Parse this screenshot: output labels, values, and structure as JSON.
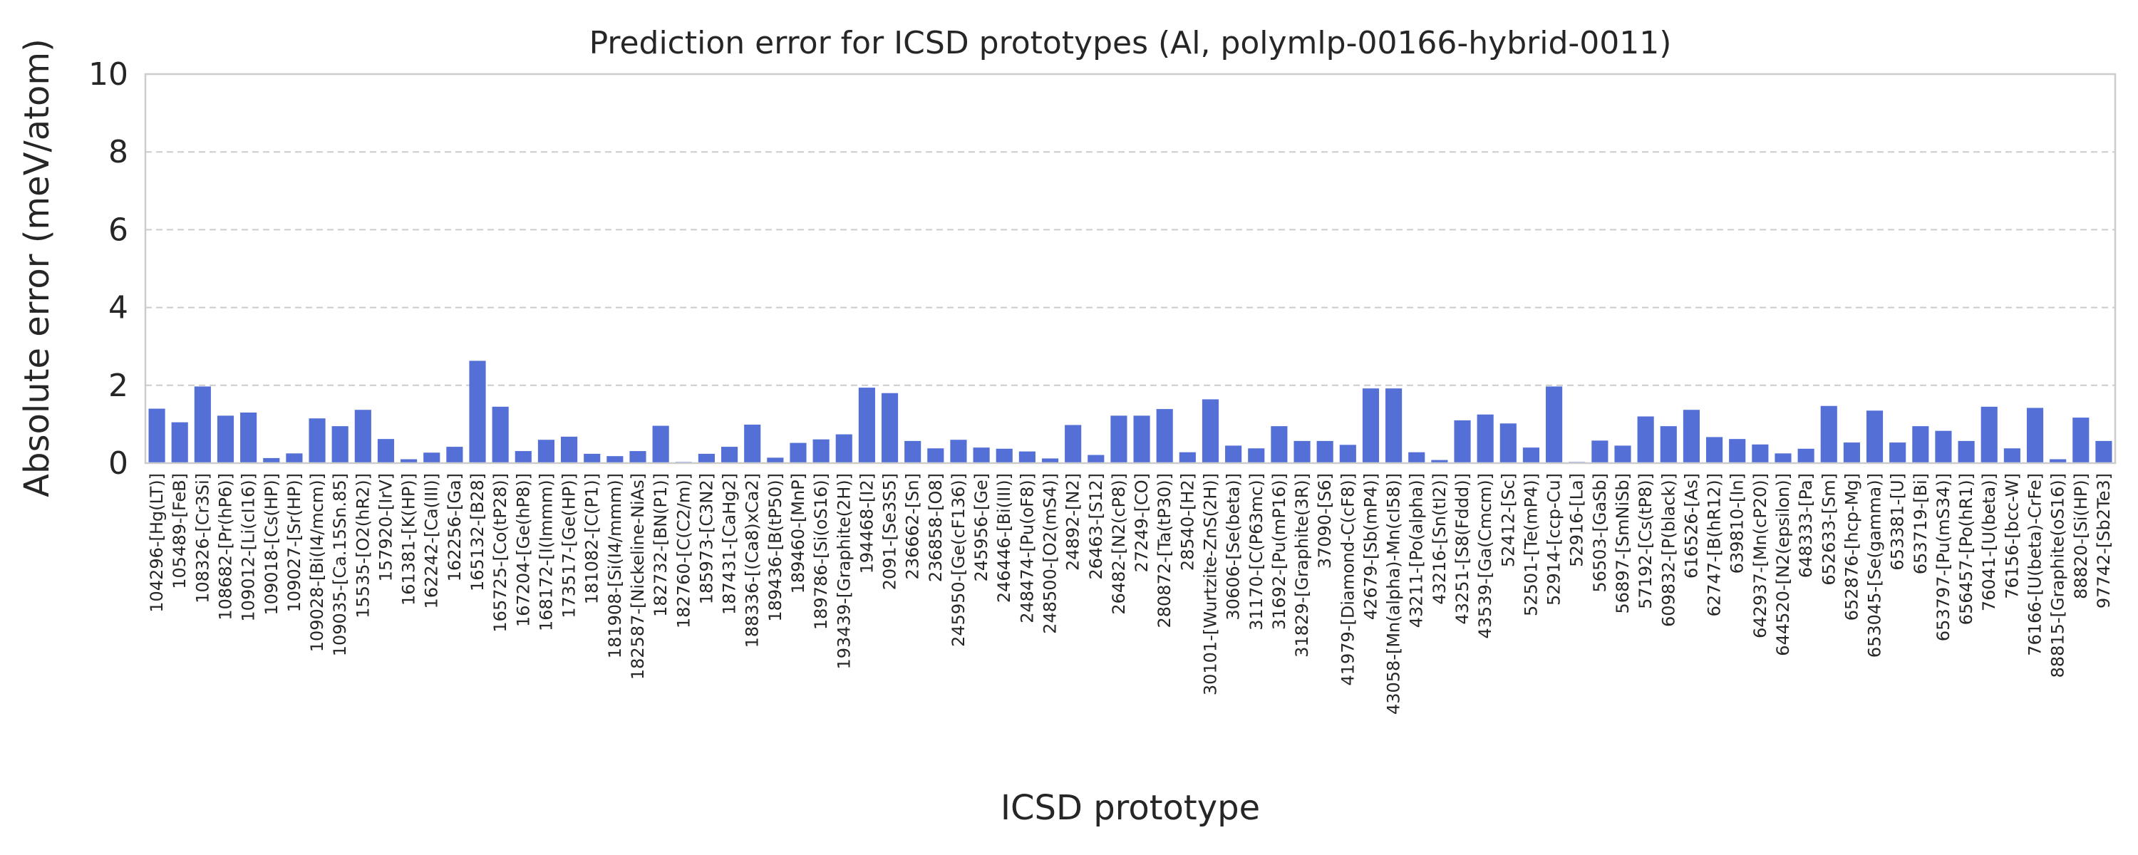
{
  "chart_data": {
    "type": "bar",
    "title": "Prediction error for ICSD prototypes (Al, polymlp-00166-hybrid-0011)",
    "xlabel": "ICSD prototype",
    "ylabel": "Absolute error (meV/atom)",
    "ylim": [
      0,
      10
    ],
    "yticks": [
      0,
      2,
      4,
      6,
      8,
      10
    ],
    "grid": true,
    "bar_color": "#5470d6",
    "categories": [
      "104296-[Hg(LT)]",
      "105489-[FeB]",
      "108326-[Cr3Si]",
      "108682-[Pr(hP6)]",
      "109012-[Li(cI16)]",
      "109018-[Cs(HP)]",
      "109027-[Sr(HP)]",
      "109028-[Bi(I4/mcm)]",
      "109035-[Ca.15Sn.85]",
      "15535-[O2(hR2)]",
      "157920-[IrV]",
      "161381-[K(HP)]",
      "162242-[Ca(III)]",
      "162256-[Ga]",
      "165132-[B28]",
      "165725-[Co(tP28)]",
      "167204-[Ge(hP8)]",
      "168172-[I(Immm)]",
      "173517-[Ge(HP)]",
      "181082-[C(P1)]",
      "181908-[Si(I4/mmm)]",
      "182587-[Nickeline-NiAs]",
      "182732-[BN(P1)]",
      "182760-[C(C2/m)]",
      "185973-[C3N2]",
      "187431-[CaHg2]",
      "188336-[(Ca8)xCa2]",
      "189436-[B(tP50)]",
      "189460-[MnP]",
      "189786-[Si(oS16)]",
      "193439-[Graphite(2H)]",
      "194468-[I2]",
      "2091-[Se3S5]",
      "236662-[Sn]",
      "236858-[O8]",
      "245950-[Ge(cF136)]",
      "245956-[Ge]",
      "246446-[Bi(III)]",
      "248474-[Pu(oF8)]",
      "248500-[O2(mS4)]",
      "24892-[N2]",
      "26463-[S12]",
      "26482-[N2(cP8)]",
      "27249-[CO]",
      "280872-[Ta(tP30)]",
      "28540-[H2]",
      "30101-[Wurtzite-ZnS(2H)]",
      "30606-[Se(beta)]",
      "31170-[C(P63mc)]",
      "31692-[Pu(mP16)]",
      "31829-[Graphite(3R)]",
      "37090-[S6]",
      "41979-[Diamond-C(cF8)]",
      "42679-[Sb(mP4)]",
      "43058-[Mn(alpha)-Mn(cI58)]",
      "43211-[Po(alpha)]",
      "43216-[Sn(tI2)]",
      "43251-[S8(Fddd)]",
      "43539-[Ga(Cmcm)]",
      "52412-[Sc]",
      "52501-[Te(mP4)]",
      "52914-[ccp-Cu]",
      "52916-[La]",
      "56503-[GaSb]",
      "56897-[SmNiSb]",
      "57192-[Cs(tP8)]",
      "609832-[P(black)]",
      "616526-[As]",
      "62747-[B(hR12)]",
      "639810-[In]",
      "642937-[Mn(cP20)]",
      "644520-[N2(epsilon)]",
      "648333-[Pa]",
      "652633-[Sm]",
      "652876-[hcp-Mg]",
      "653045-[Se(gamma)]",
      "653381-[U]",
      "653719-[Bi]",
      "653797-[Pu(mS34)]",
      "656457-[Po(hR1)]",
      "76041-[U(beta)]",
      "76156-[bcc-W]",
      "76166-[U(beta)-CrFe]",
      "88815-[Graphite(oS16)]",
      "88820-[Si(HP)]",
      "97742-[Sb2Te3]"
    ],
    "values": [
      1.4,
      1.05,
      1.97,
      1.22,
      1.3,
      0.13,
      0.25,
      1.15,
      0.95,
      1.37,
      0.62,
      0.1,
      0.27,
      0.42,
      2.63,
      1.45,
      0.31,
      0.6,
      0.68,
      0.24,
      0.18,
      0.31,
      0.96,
      0.03,
      0.24,
      0.42,
      0.99,
      0.14,
      0.52,
      0.61,
      0.74,
      1.94,
      1.8,
      0.57,
      0.38,
      0.6,
      0.4,
      0.37,
      0.3,
      0.12,
      0.98,
      0.21,
      1.22,
      1.22,
      1.39,
      0.28,
      1.64,
      0.45,
      0.38,
      0.95,
      0.57,
      0.57,
      0.47,
      1.92,
      1.92,
      0.28,
      0.08,
      1.1,
      1.25,
      1.02,
      0.4,
      1.97,
      0.03,
      0.58,
      0.45,
      1.2,
      0.95,
      1.37,
      0.67,
      0.62,
      0.48,
      0.25,
      0.37,
      1.47,
      0.53,
      1.35,
      0.53,
      0.95,
      0.83,
      0.57,
      1.45,
      0.38,
      1.42,
      0.1,
      1.17,
      0.57
    ]
  }
}
